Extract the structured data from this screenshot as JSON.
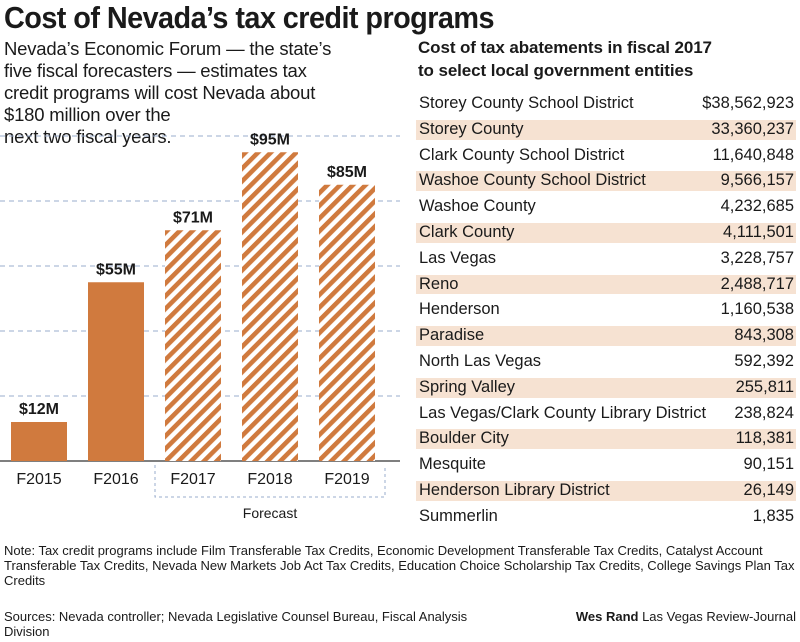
{
  "title": "Cost of Nevada’s tax credit programs",
  "intro_lines": [
    "Nevada’s Economic Forum — the state’s",
    "five fiscal forecasters — estimates tax",
    "credit programs will cost Nevada about",
    "$180 million over the",
    "next two fiscal years."
  ],
  "chart_data": {
    "type": "bar",
    "categories": [
      "F2015",
      "F2016",
      "F2017",
      "F2018",
      "F2019"
    ],
    "values": [
      12,
      55,
      71,
      95,
      85
    ],
    "value_labels": [
      "$12M",
      "$55M",
      "$71M",
      "$95M",
      "$85M"
    ],
    "forecast": [
      false,
      false,
      true,
      true,
      true
    ],
    "forecast_label": "Forecast",
    "ylim": [
      0,
      105
    ],
    "grid": true,
    "colors": {
      "actual": "#d07a3e",
      "hatch": "#d07a3e",
      "grid": "#9aaccc"
    }
  },
  "table": {
    "heading_lines": [
      "Cost of tax abatements in fiscal 2017",
      "to select local government entities"
    ],
    "rows": [
      {
        "name": "Storey County School District",
        "value": "$38,562,923"
      },
      {
        "name": "Storey County",
        "value": "33,360,237"
      },
      {
        "name": "Clark County School District",
        "value": "11,640,848"
      },
      {
        "name": "Washoe County School District",
        "value": "9,566,157"
      },
      {
        "name": "Washoe County",
        "value": "4,232,685"
      },
      {
        "name": "Clark County",
        "value": "4,111,501"
      },
      {
        "name": "Las Vegas",
        "value": "3,228,757"
      },
      {
        "name": "Reno",
        "value": "2,488,717"
      },
      {
        "name": "Henderson",
        "value": "1,160,538"
      },
      {
        "name": "Paradise",
        "value": "843,308"
      },
      {
        "name": "North Las Vegas",
        "value": "592,392"
      },
      {
        "name": "Spring Valley",
        "value": "255,811"
      },
      {
        "name": "Las Vegas/Clark County Library District",
        "value": "238,824"
      },
      {
        "name": "Boulder City",
        "value": "118,381"
      },
      {
        "name": "Mesquite",
        "value": "90,151"
      },
      {
        "name": "Henderson Library District",
        "value": "26,149"
      },
      {
        "name": "Summerlin",
        "value": "1,835"
      }
    ]
  },
  "note": "Note: Tax credit programs include Film Transferable Tax Credits, Economic Development Transferable Tax Credits, Catalyst Account Transferable Tax Credits, Nevada New Markets Job Act Tax Credits, Education Choice Scholarship Tax Credits, College Savings Plan Tax Credits",
  "sources": "Sources: Nevada controller; Nevada Legislative Counsel Bureau, Fiscal Analysis Division",
  "credit": {
    "name": "Wes Rand",
    "org": "Las Vegas Review-Journal"
  }
}
